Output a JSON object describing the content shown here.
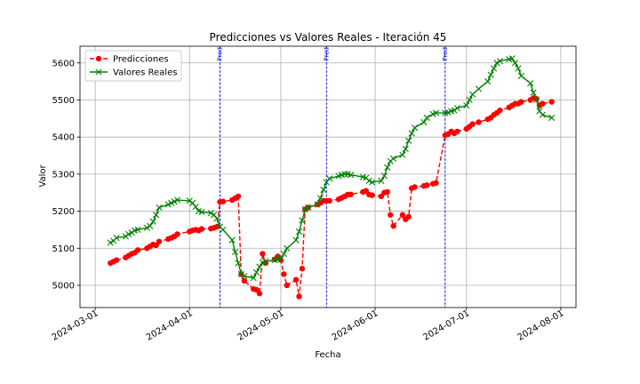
{
  "chart_data": {
    "type": "line",
    "title": "Predicciones vs Valores Reales - Iteración 45",
    "xlabel": "Fecha",
    "ylabel": "Valor",
    "x_type": "date",
    "xlim": [
      "2024-02-25",
      "2024-08-06"
    ],
    "ylim": [
      4940,
      5645
    ],
    "xticks": [
      "2024-03-01",
      "2024-04-01",
      "2024-05-01",
      "2024-06-01",
      "2024-07-01",
      "2024-08-01"
    ],
    "yticks": [
      5000,
      5100,
      5200,
      5300,
      5400,
      5500,
      5600
    ],
    "grid": true,
    "legend_position": "top-left",
    "prediction_lines": {
      "dates": [
        "2024-04-11",
        "2024-05-16",
        "2024-06-24"
      ],
      "label": "Pred",
      "color": "#0000ee"
    },
    "series": [
      {
        "name": "Predicciones",
        "color": "#ff0000",
        "marker": "circle",
        "linestyle": "dashed",
        "points": [
          [
            "2024-03-06",
            5060
          ],
          [
            "2024-03-07",
            5064
          ],
          [
            "2024-03-08",
            5068
          ],
          [
            "2024-03-11",
            5075
          ],
          [
            "2024-03-12",
            5080
          ],
          [
            "2024-03-13",
            5085
          ],
          [
            "2024-03-14",
            5088
          ],
          [
            "2024-03-15",
            5095
          ],
          [
            "2024-03-18",
            5100
          ],
          [
            "2024-03-19",
            5105
          ],
          [
            "2024-03-20",
            5110
          ],
          [
            "2024-03-21",
            5108
          ],
          [
            "2024-03-22",
            5118
          ],
          [
            "2024-03-25",
            5125
          ],
          [
            "2024-03-26",
            5128
          ],
          [
            "2024-03-27",
            5132
          ],
          [
            "2024-03-28",
            5138
          ],
          [
            "2024-04-01",
            5145
          ],
          [
            "2024-04-02",
            5148
          ],
          [
            "2024-04-03",
            5150
          ],
          [
            "2024-04-04",
            5148
          ],
          [
            "2024-04-05",
            5152
          ],
          [
            "2024-04-08",
            5153
          ],
          [
            "2024-04-09",
            5155
          ],
          [
            "2024-04-10",
            5158
          ],
          [
            "2024-04-11",
            5225
          ],
          [
            "2024-04-12",
            5226
          ],
          [
            "2024-04-15",
            5230
          ],
          [
            "2024-04-16",
            5235
          ],
          [
            "2024-04-17",
            5240
          ],
          [
            "2024-04-18",
            5030
          ],
          [
            "2024-04-19",
            5012
          ],
          [
            "2024-04-22",
            4990
          ],
          [
            "2024-04-23",
            4988
          ],
          [
            "2024-04-24",
            4978
          ],
          [
            "2024-04-25",
            5085
          ],
          [
            "2024-04-26",
            5060
          ],
          [
            "2024-04-29",
            5070
          ],
          [
            "2024-04-30",
            5078
          ],
          [
            "2024-05-01",
            5068
          ],
          [
            "2024-05-02",
            5030
          ],
          [
            "2024-05-03",
            5000
          ],
          [
            "2024-05-06",
            5015
          ],
          [
            "2024-05-07",
            4970
          ],
          [
            "2024-05-08",
            5045
          ],
          [
            "2024-05-09",
            5205
          ],
          [
            "2024-05-10",
            5210
          ],
          [
            "2024-05-13",
            5218
          ],
          [
            "2024-05-14",
            5222
          ],
          [
            "2024-05-15",
            5228
          ],
          [
            "2024-05-16",
            5228
          ],
          [
            "2024-05-17",
            5228
          ],
          [
            "2024-05-20",
            5232
          ],
          [
            "2024-05-21",
            5236
          ],
          [
            "2024-05-22",
            5240
          ],
          [
            "2024-05-23",
            5245
          ],
          [
            "2024-05-24",
            5245
          ],
          [
            "2024-05-28",
            5252
          ],
          [
            "2024-05-29",
            5255
          ],
          [
            "2024-05-30",
            5245
          ],
          [
            "2024-05-31",
            5243
          ],
          [
            "2024-06-03",
            5240
          ],
          [
            "2024-06-04",
            5250
          ],
          [
            "2024-06-05",
            5252
          ],
          [
            "2024-06-06",
            5190
          ],
          [
            "2024-06-07",
            5160
          ],
          [
            "2024-06-10",
            5190
          ],
          [
            "2024-06-11",
            5178
          ],
          [
            "2024-06-12",
            5185
          ],
          [
            "2024-06-13",
            5262
          ],
          [
            "2024-06-14",
            5265
          ],
          [
            "2024-06-17",
            5268
          ],
          [
            "2024-06-18",
            5270
          ],
          [
            "2024-06-20",
            5274
          ],
          [
            "2024-06-21",
            5276
          ],
          [
            "2024-06-24",
            5405
          ],
          [
            "2024-06-25",
            5408
          ],
          [
            "2024-06-26",
            5415
          ],
          [
            "2024-06-27",
            5410
          ],
          [
            "2024-06-28",
            5415
          ],
          [
            "2024-07-01",
            5422
          ],
          [
            "2024-07-02",
            5428
          ],
          [
            "2024-07-03",
            5435
          ],
          [
            "2024-07-05",
            5440
          ],
          [
            "2024-07-08",
            5448
          ],
          [
            "2024-07-09",
            5452
          ],
          [
            "2024-07-10",
            5460
          ],
          [
            "2024-07-11",
            5465
          ],
          [
            "2024-07-12",
            5472
          ],
          [
            "2024-07-15",
            5480
          ],
          [
            "2024-07-16",
            5485
          ],
          [
            "2024-07-17",
            5490
          ],
          [
            "2024-07-18",
            5490
          ],
          [
            "2024-07-19",
            5495
          ],
          [
            "2024-07-22",
            5500
          ],
          [
            "2024-07-23",
            5505
          ],
          [
            "2024-07-24",
            5503
          ],
          [
            "2024-07-25",
            5485
          ],
          [
            "2024-07-26",
            5490
          ],
          [
            "2024-07-29",
            5495
          ]
        ]
      },
      {
        "name": "Valores Reales",
        "color": "#008000",
        "marker": "x",
        "linestyle": "solid",
        "points": [
          [
            "2024-03-06",
            5115
          ],
          [
            "2024-03-07",
            5120
          ],
          [
            "2024-03-08",
            5128
          ],
          [
            "2024-03-11",
            5132
          ],
          [
            "2024-03-12",
            5138
          ],
          [
            "2024-03-13",
            5142
          ],
          [
            "2024-03-14",
            5148
          ],
          [
            "2024-03-15",
            5150
          ],
          [
            "2024-03-18",
            5155
          ],
          [
            "2024-03-19",
            5160
          ],
          [
            "2024-03-20",
            5172
          ],
          [
            "2024-03-21",
            5190
          ],
          [
            "2024-03-22",
            5210
          ],
          [
            "2024-03-25",
            5218
          ],
          [
            "2024-03-26",
            5222
          ],
          [
            "2024-03-27",
            5226
          ],
          [
            "2024-03-28",
            5230
          ],
          [
            "2024-04-01",
            5228
          ],
          [
            "2024-04-02",
            5222
          ],
          [
            "2024-04-03",
            5212
          ],
          [
            "2024-04-04",
            5200
          ],
          [
            "2024-04-05",
            5198
          ],
          [
            "2024-04-08",
            5195
          ],
          [
            "2024-04-09",
            5190
          ],
          [
            "2024-04-10",
            5180
          ],
          [
            "2024-04-11",
            5158
          ],
          [
            "2024-04-12",
            5150
          ],
          [
            "2024-04-15",
            5122
          ],
          [
            "2024-04-16",
            5090
          ],
          [
            "2024-04-17",
            5060
          ],
          [
            "2024-04-18",
            5030
          ],
          [
            "2024-04-19",
            5025
          ],
          [
            "2024-04-22",
            5020
          ],
          [
            "2024-04-23",
            5035
          ],
          [
            "2024-04-24",
            5050
          ],
          [
            "2024-04-25",
            5062
          ],
          [
            "2024-04-26",
            5065
          ],
          [
            "2024-04-29",
            5068
          ],
          [
            "2024-04-30",
            5070
          ],
          [
            "2024-05-01",
            5072
          ],
          [
            "2024-05-02",
            5085
          ],
          [
            "2024-05-03",
            5100
          ],
          [
            "2024-05-06",
            5122
          ],
          [
            "2024-05-07",
            5145
          ],
          [
            "2024-05-08",
            5175
          ],
          [
            "2024-05-09",
            5205
          ],
          [
            "2024-05-10",
            5210
          ],
          [
            "2024-05-13",
            5218
          ],
          [
            "2024-05-14",
            5235
          ],
          [
            "2024-05-15",
            5258
          ],
          [
            "2024-05-16",
            5278
          ],
          [
            "2024-05-17",
            5288
          ],
          [
            "2024-05-20",
            5295
          ],
          [
            "2024-05-21",
            5298
          ],
          [
            "2024-05-22",
            5300
          ],
          [
            "2024-05-23",
            5300
          ],
          [
            "2024-05-24",
            5298
          ],
          [
            "2024-05-28",
            5292
          ],
          [
            "2024-05-29",
            5290
          ],
          [
            "2024-05-30",
            5282
          ],
          [
            "2024-05-31",
            5278
          ],
          [
            "2024-06-03",
            5282
          ],
          [
            "2024-06-04",
            5295
          ],
          [
            "2024-06-05",
            5318
          ],
          [
            "2024-06-06",
            5335
          ],
          [
            "2024-06-07",
            5342
          ],
          [
            "2024-06-10",
            5352
          ],
          [
            "2024-06-11",
            5368
          ],
          [
            "2024-06-12",
            5390
          ],
          [
            "2024-06-13",
            5410
          ],
          [
            "2024-06-14",
            5425
          ],
          [
            "2024-06-17",
            5440
          ],
          [
            "2024-06-18",
            5452
          ],
          [
            "2024-06-20",
            5462
          ],
          [
            "2024-06-21",
            5465
          ],
          [
            "2024-06-24",
            5465
          ],
          [
            "2024-06-25",
            5466
          ],
          [
            "2024-06-26",
            5470
          ],
          [
            "2024-06-27",
            5472
          ],
          [
            "2024-06-28",
            5478
          ],
          [
            "2024-07-01",
            5485
          ],
          [
            "2024-07-02",
            5500
          ],
          [
            "2024-07-03",
            5515
          ],
          [
            "2024-07-05",
            5530
          ],
          [
            "2024-07-08",
            5550
          ],
          [
            "2024-07-09",
            5568
          ],
          [
            "2024-07-10",
            5585
          ],
          [
            "2024-07-11",
            5600
          ],
          [
            "2024-07-12",
            5605
          ],
          [
            "2024-07-15",
            5610
          ],
          [
            "2024-07-16",
            5612
          ],
          [
            "2024-07-17",
            5600
          ],
          [
            "2024-07-18",
            5585
          ],
          [
            "2024-07-19",
            5565
          ],
          [
            "2024-07-22",
            5545
          ],
          [
            "2024-07-23",
            5520
          ],
          [
            "2024-07-24",
            5500
          ],
          [
            "2024-07-25",
            5470
          ],
          [
            "2024-07-26",
            5460
          ],
          [
            "2024-07-29",
            5452
          ]
        ]
      }
    ]
  }
}
